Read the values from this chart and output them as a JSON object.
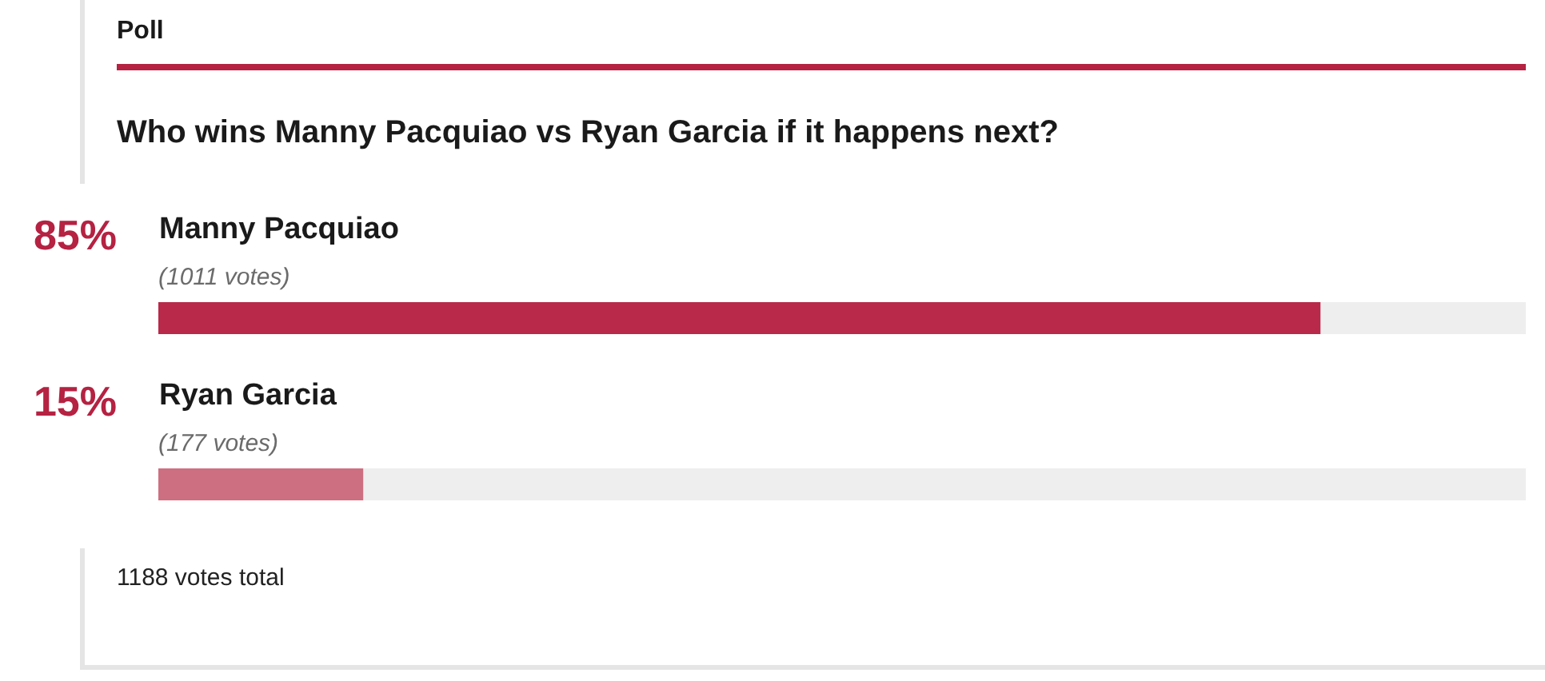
{
  "chart_data": {
    "type": "bar",
    "orientation": "horizontal",
    "stacked": true,
    "title": "Poll",
    "subtitle": "Who wins Manny Pacquiao vs Ryan Garcia if it happens next?",
    "categories": [
      "Manny Pacquiao",
      "Ryan Garcia"
    ],
    "series": [
      {
        "colors": [
          "#b8294a",
          "#cd6f80"
        ],
        "values": [
          85,
          15
        ],
        "value_labels": [
          "85%",
          "15%"
        ]
      },
      {
        "color": "#eeeeee",
        "values": [
          15,
          85
        ]
      }
    ],
    "xlim": [
      0,
      100
    ],
    "tick_labels": "y",
    "annotations": [
      {
        "text": "(1011 votes)",
        "y": "Manny Pacquiao"
      },
      {
        "text": "(177 votes)",
        "y": "Ryan Garcia"
      },
      "1188 votes total"
    ]
  }
}
